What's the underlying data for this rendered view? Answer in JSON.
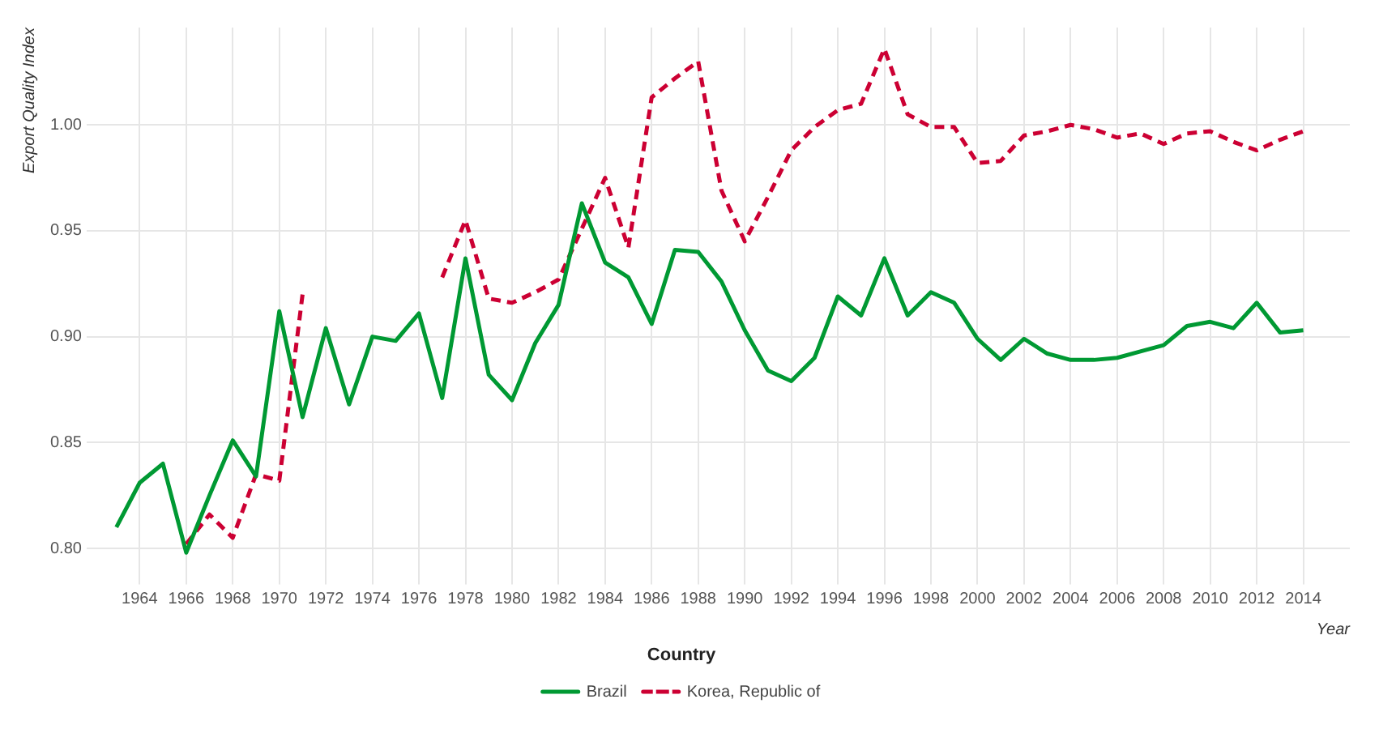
{
  "chart_data": {
    "type": "line",
    "xlabel": "Year",
    "ylabel": "Export Quality Index",
    "legend_title": "Country",
    "legend": "bottom",
    "grid": true,
    "marker": "none",
    "x": [
      1963,
      1964,
      1965,
      1966,
      1967,
      1968,
      1969,
      1970,
      1971,
      1972,
      1973,
      1974,
      1975,
      1976,
      1977,
      1978,
      1979,
      1980,
      1981,
      1982,
      1983,
      1984,
      1985,
      1986,
      1987,
      1988,
      1989,
      1990,
      1991,
      1992,
      1993,
      1994,
      1995,
      1996,
      1997,
      1998,
      1999,
      2000,
      2001,
      2002,
      2003,
      2004,
      2005,
      2006,
      2007,
      2008,
      2009,
      2010,
      2011,
      2012,
      2013,
      2014
    ],
    "xlim": [
      1962,
      2016
    ],
    "xticks": [
      1964,
      1966,
      1968,
      1970,
      1972,
      1974,
      1976,
      1978,
      1980,
      1982,
      1984,
      1986,
      1988,
      1990,
      1992,
      1994,
      1996,
      1998,
      2000,
      2002,
      2004,
      2006,
      2008,
      2010,
      2012,
      2014
    ],
    "ylim": [
      0.786,
      1.046
    ],
    "yticks": [
      {
        "value": 0.8,
        "label": "0.80"
      },
      0.85,
      {
        "value": 0.9,
        "label": "0.90"
      },
      0.95,
      {
        "value": 1.0,
        "label": "1.00"
      }
    ],
    "series": [
      {
        "name": "Brazil",
        "color": "#009933",
        "line_style": "solid",
        "values": [
          0.81,
          0.831,
          0.84,
          0.798,
          0.825,
          0.851,
          0.834,
          0.912,
          0.862,
          0.904,
          0.868,
          0.9,
          0.898,
          0.911,
          0.871,
          0.937,
          0.882,
          0.87,
          0.897,
          0.915,
          0.963,
          0.935,
          0.928,
          0.906,
          0.941,
          0.94,
          0.926,
          0.903,
          0.884,
          0.879,
          0.89,
          0.919,
          0.91,
          0.937,
          0.91,
          0.921,
          0.916,
          0.899,
          0.889,
          0.899,
          0.892,
          0.889,
          0.889,
          0.89,
          0.893,
          0.896,
          0.905,
          0.907,
          0.904,
          0.916,
          0.902,
          0.903
        ]
      },
      {
        "name": "Korea, Republic of",
        "color": "#cc0033",
        "line_style": "dashed",
        "values": [
          null,
          null,
          null,
          0.802,
          0.816,
          0.805,
          0.835,
          0.832,
          0.92,
          null,
          null,
          null,
          null,
          null,
          0.928,
          0.955,
          0.918,
          0.916,
          0.921,
          0.927,
          0.951,
          0.975,
          0.942,
          1.013,
          1.022,
          1.03,
          0.969,
          0.945,
          0.966,
          0.988,
          0.999,
          1.007,
          1.01,
          1.036,
          1.005,
          0.999,
          0.999,
          0.982,
          0.983,
          0.995,
          0.997,
          1.0,
          0.998,
          0.994,
          0.996,
          0.991,
          0.996,
          0.997,
          0.992,
          0.988,
          0.993,
          0.997
        ]
      }
    ]
  }
}
